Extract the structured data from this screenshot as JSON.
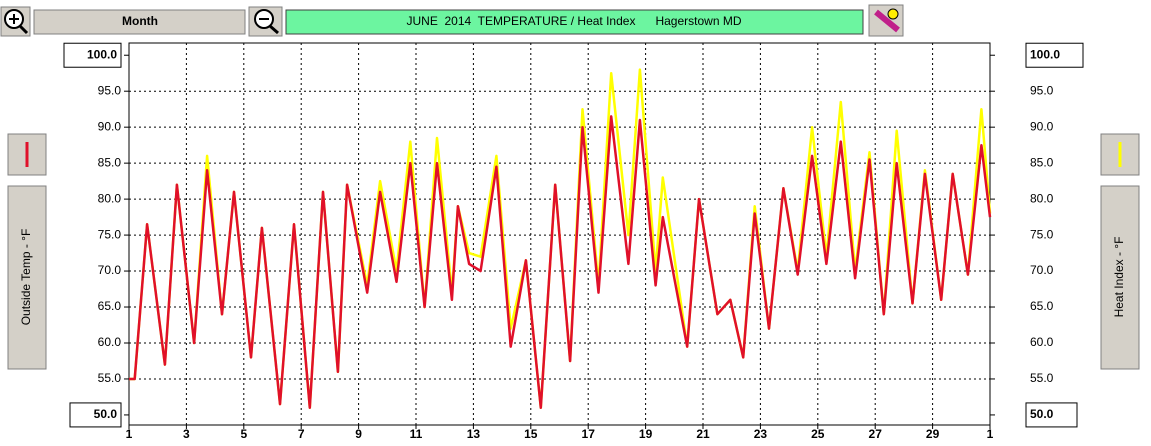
{
  "buttons": {
    "period": "Month"
  },
  "chart_data": {
    "type": "line",
    "title": "JUNE  2014  TEMPERATURE / Heat Index      Hagerstown MD",
    "x": [
      1.0,
      1.2,
      1.63,
      2.25,
      2.67,
      3.27,
      3.72,
      4.24,
      4.66,
      5.25,
      5.63,
      6.26,
      6.75,
      7.3,
      7.76,
      8.28,
      8.6,
      9.3,
      9.75,
      10.32,
      10.8,
      11.3,
      11.73,
      12.25,
      12.46,
      12.85,
      13.25,
      13.8,
      14.3,
      14.83,
      15.35,
      15.85,
      16.37,
      16.8,
      17.36,
      17.8,
      18.4,
      18.8,
      19.35,
      19.6,
      20.45,
      20.86,
      21.5,
      21.95,
      22.4,
      22.8,
      23.3,
      23.8,
      24.3,
      24.8,
      25.3,
      25.8,
      26.3,
      26.8,
      27.3,
      27.75,
      28.3,
      28.73,
      29.3,
      29.7,
      30.23,
      30.7,
      31.0
    ],
    "series": [
      {
        "name": "Heat Index - °F",
        "color": "#ffff00",
        "axis": "y2",
        "values": [
          55,
          55,
          76.5,
          57,
          82,
          60,
          86,
          64,
          81,
          58,
          76,
          51.5,
          76.5,
          51,
          81,
          56,
          82,
          68,
          82.5,
          70,
          88,
          65,
          88.5,
          67,
          79,
          72.5,
          72,
          86,
          62,
          71.5,
          51,
          82,
          57.5,
          92.5,
          68,
          97.5,
          75,
          98,
          70,
          83,
          59.5,
          80,
          64,
          66,
          58,
          79,
          62,
          81.5,
          70,
          90,
          72,
          93.5,
          70,
          86.5,
          64,
          89.5,
          65.5,
          84,
          66,
          83.5,
          69.5,
          92.5,
          78
        ]
      },
      {
        "name": "Outside Temp - °F",
        "color": "#e0102a",
        "values": [
          55,
          55,
          76.5,
          57,
          82,
          60,
          84,
          64,
          81,
          58,
          76,
          51.5,
          76.5,
          51,
          81,
          56,
          82,
          67,
          81,
          68.5,
          85,
          65,
          85,
          66,
          79,
          71,
          70,
          84.5,
          59.5,
          71.5,
          51,
          82,
          57.5,
          90,
          67,
          91.5,
          71,
          91,
          68,
          77.5,
          59.5,
          80,
          64,
          66,
          58,
          78,
          62,
          81.5,
          69.5,
          86,
          71,
          88,
          69,
          85.5,
          64,
          85,
          65.5,
          83.5,
          66,
          83.5,
          69.5,
          87.5,
          77.5
        ]
      }
    ],
    "xlim": [
      1,
      31
    ],
    "xticks": [
      1,
      3,
      5,
      7,
      9,
      11,
      13,
      15,
      17,
      19,
      21,
      23,
      25,
      27,
      29,
      {
        "value": 31,
        "label": "1"
      }
    ],
    "ylim": [
      48.6,
      101.7
    ],
    "yticks": [
      {
        "value": 50,
        "label": "50.0"
      },
      {
        "value": 55,
        "label": "55.0"
      },
      {
        "value": 60,
        "label": "60.0"
      },
      {
        "value": 65,
        "label": "65.0"
      },
      {
        "value": 70,
        "label": "70.0"
      },
      {
        "value": 75,
        "label": "75.0"
      },
      {
        "value": 80,
        "label": "80.0"
      },
      {
        "value": 85,
        "label": "85.0"
      },
      {
        "value": 90,
        "label": "90.0"
      },
      {
        "value": 95,
        "label": "95.0"
      },
      {
        "value": 100,
        "label": "100.0"
      }
    ],
    "y2lim": [
      48.6,
      101.7
    ],
    "y2ticks": [
      {
        "value": 50,
        "label": "50.0"
      },
      {
        "value": 55,
        "label": "55.0"
      },
      {
        "value": 60,
        "label": "60.0"
      },
      {
        "value": 65,
        "label": "65.0"
      },
      {
        "value": 70,
        "label": "70.0"
      },
      {
        "value": 75,
        "label": "75.0"
      },
      {
        "value": 80,
        "label": "80.0"
      },
      {
        "value": 85,
        "label": "85.0"
      },
      {
        "value": 90,
        "label": "90.0"
      },
      {
        "value": 95,
        "label": "95.0"
      },
      {
        "value": 100,
        "label": "100.0"
      }
    ],
    "grid": true
  }
}
